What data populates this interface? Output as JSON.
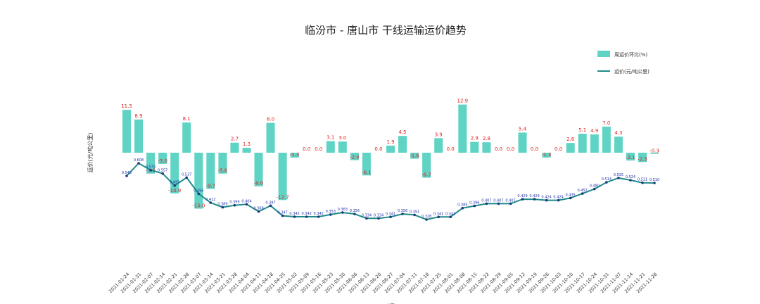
{
  "chart_data": {
    "type": "bar",
    "title": "临汾市 - 唐山市 干线运输运价趋势",
    "ylabel": "运价(元/吨公里)",
    "xlabel": "时间",
    "legend_position": "top-right",
    "bar_color": "#5fd3c4",
    "line_color": "#1f8a8a",
    "categories": [
      "2021-01-24",
      "2021-01-31",
      "2021-02-07",
      "2021-02-14",
      "2021-02-21",
      "2021-02-28",
      "2021-03-07",
      "2021-03-14",
      "2021-03-21",
      "2021-03-28",
      "2021-04-04",
      "2021-04-11",
      "2021-04-18",
      "2021-04-25",
      "2021-05-02",
      "2021-05-09",
      "2021-05-16",
      "2021-05-23",
      "2021-05-30",
      "2021-06-06",
      "2021-06-13",
      "2021-06-20",
      "2021-06-27",
      "2021-07-04",
      "2021-07-11",
      "2021-07-18",
      "2021-07-25",
      "2021-08-01",
      "2021-08-08",
      "2021-08-15",
      "2021-08-22",
      "2021-08-29",
      "2021-09-05",
      "2021-09-12",
      "2021-09-19",
      "2021-09-26",
      "2021-10-03",
      "2021-10-10",
      "2021-10-17",
      "2021-10-24",
      "2021-10-31",
      "2021-11-07",
      "2021-11-14",
      "2021-11-21",
      "2021-11-28"
    ],
    "series": [
      {
        "name": "周运价环比(%)",
        "type": "bar",
        "values": [
          11.5,
          8.9,
          -5.6,
          -3.0,
          -10.9,
          8.1,
          -15.0,
          -9.7,
          -5.6,
          2.7,
          1.3,
          -9.0,
          8.0,
          -12.7,
          -1.3,
          0.0,
          0.0,
          3.1,
          3.0,
          -2.0,
          -6.1,
          0.0,
          1.9,
          4.5,
          -1.6,
          -6.7,
          3.9,
          0.0,
          12.9,
          2.9,
          2.8,
          0.0,
          0.0,
          5.4,
          0.0,
          -1.3,
          0.0,
          2.6,
          5.1,
          4.9,
          7.0,
          4.3,
          -2.1,
          -2.5,
          -0.3
        ],
        "labels": [
          "11.5",
          "8.9",
          "-5.6",
          "-3.0",
          "-10.9",
          "8.1",
          "-15.0",
          "-9.7",
          "-5.6",
          "2.7",
          "1.3",
          "-9.0",
          "8.0",
          "-12.7",
          "-1.3",
          "0.0",
          "0.0",
          "3.1",
          "3.0",
          "-2.0",
          "-6.1",
          "0.0",
          "1.9",
          "4.5",
          "-1.6",
          "-6.7",
          "3.9",
          "0.0",
          "12.9",
          "2.9",
          "2.8",
          "0.0",
          "0.0",
          "5.4",
          "0.0",
          "-1.3",
          "0.0",
          "2.6",
          "5.1",
          "4.9",
          "7.0",
          "4.3",
          "-2.1",
          "-2.5",
          "-0.3"
        ]
      },
      {
        "name": "运价(元/吨公里)",
        "type": "line",
        "values": [
          0.545,
          0.608,
          0.574,
          0.557,
          0.497,
          0.537,
          0.456,
          0.412,
          0.389,
          0.399,
          0.404,
          0.368,
          0.397,
          0.347,
          0.342,
          0.342,
          0.342,
          0.353,
          0.363,
          0.356,
          0.334,
          0.334,
          0.341,
          0.356,
          0.351,
          0.328,
          0.341,
          0.341,
          0.385,
          0.396,
          0.407,
          0.407,
          0.407,
          0.429,
          0.429,
          0.424,
          0.424,
          0.435,
          0.457,
          0.48,
          0.513,
          0.535,
          0.524,
          0.511,
          0.51
        ],
        "labels": [
          "0.545",
          "0.608",
          "0.574",
          "0.557",
          "0.497",
          "0.537",
          "0.456",
          "0.412",
          "0.389",
          "0.399",
          "0.404",
          "0.368",
          "0.397",
          "0.347",
          "0.342",
          "0.342",
          "0.342",
          "0.353",
          "0.363",
          "0.356",
          "0.334",
          "0.334",
          "0.341",
          "0.356",
          "0.351",
          "0.328",
          "0.341",
          "0.341",
          "0.385",
          "0.396",
          "0.407",
          "0.407",
          "0.407",
          "0.429",
          "0.429",
          "0.424",
          "0.424",
          "0.435",
          "0.457",
          "0.480",
          "0.513",
          "0.535",
          "0.524",
          "0.511",
          "0.510"
        ]
      }
    ]
  }
}
